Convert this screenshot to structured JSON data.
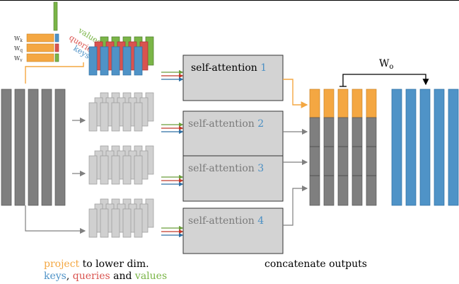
{
  "heads": [
    {
      "label": "self-attention",
      "number": "1"
    },
    {
      "label": "self-attention",
      "number": "2"
    },
    {
      "label": "self-attention",
      "number": "3"
    },
    {
      "label": "self-attention",
      "number": "4"
    }
  ],
  "weights": {
    "k": "W",
    "k_sub": "k",
    "q": "W",
    "q_sub": "q",
    "v": "W",
    "v_sub": "v"
  },
  "kqv_labels": {
    "values": "values",
    "queries": "queries",
    "keys": "keys"
  },
  "output_weight": {
    "main": "W",
    "sub": "o"
  },
  "caption_left": {
    "project": "project",
    "project_rest": " to lower dim.",
    "keys": "keys",
    "sep1": ", ",
    "queries": "queries",
    "sep2": " and ",
    "values": "values"
  },
  "caption_right": "concatenate outputs",
  "colors": {
    "orange": "#f4a742",
    "blue": "#4f93c7",
    "red": "#d9534f",
    "green": "#7ab547",
    "dark_gray": "#7f7f7f",
    "light_gray": "#d0d0d0",
    "box_gray": "#d3d3d3"
  }
}
